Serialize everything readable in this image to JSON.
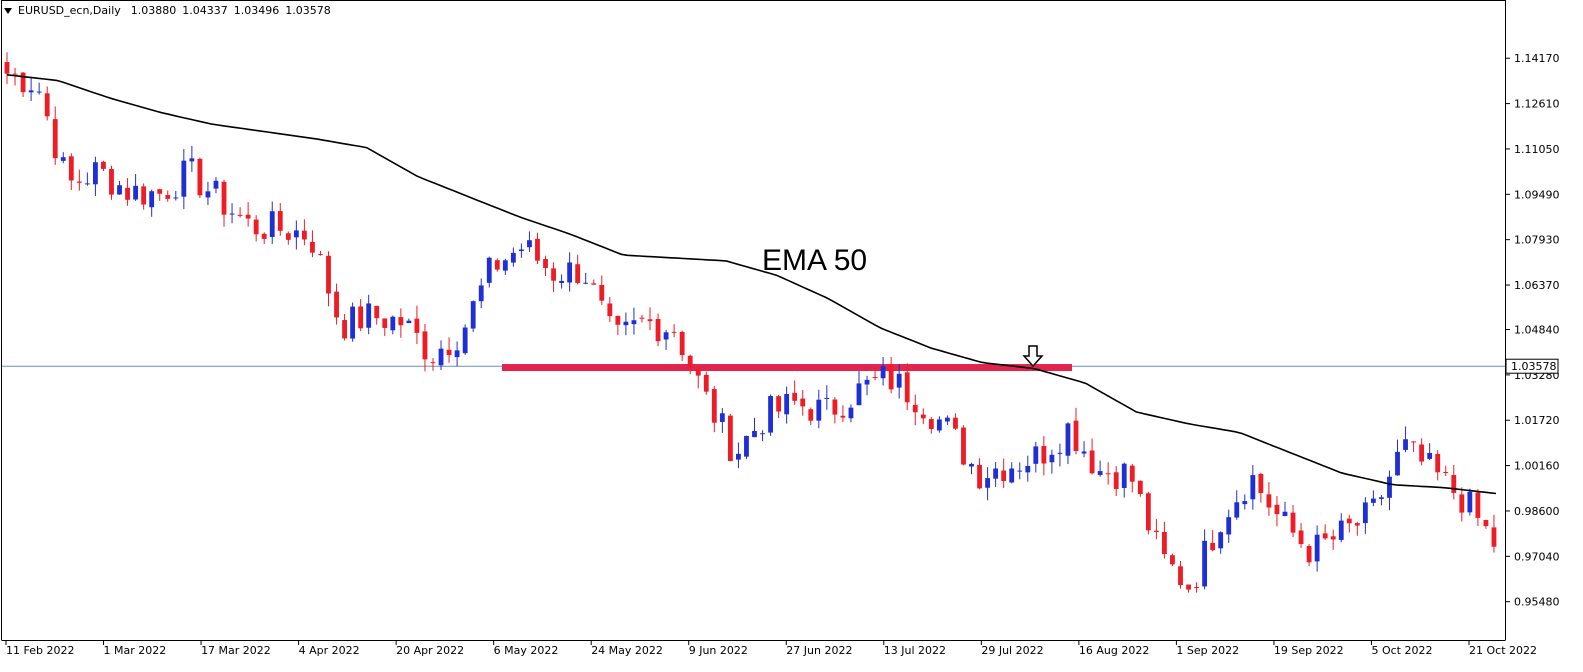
{
  "header": {
    "symbol": "EURUSD_ecn,Daily",
    "open": "1.03880",
    "high": "1.04337",
    "low": "1.03496",
    "close": "1.03578"
  },
  "annotations": {
    "ema_label": "EMA 50",
    "current_price": "1.03578"
  },
  "colors": {
    "bull": "#1f2fd6",
    "bear": "#ee1c25",
    "ema": "#000000",
    "support_zone": "#e0254f",
    "price_line": "#6b8fc0",
    "price_tag_bg": "#ffffff"
  },
  "chart_data": {
    "type": "candlestick",
    "title": "EURUSD_ecn,Daily",
    "ylim": [
      0.9485,
      1.149
    ],
    "y_ticks": [
      "1.14170",
      "1.12610",
      "1.11050",
      "1.09490",
      "1.07930",
      "1.06370",
      "1.04840",
      "1.03280",
      "1.01720",
      "1.00160",
      "0.98600",
      "0.97040",
      "0.95480"
    ],
    "x_ticks": [
      "11 Feb 2022",
      "1 Mar 2022",
      "17 Mar 2022",
      "4 Apr 2022",
      "20 Apr 2022",
      "6 May 2022",
      "24 May 2022",
      "9 Jun 2022",
      "27 Jun 2022",
      "13 Jul 2022",
      "29 Jul 2022",
      "16 Aug 2022",
      "1 Sep 2022",
      "19 Sep 2022",
      "5 Oct 2022",
      "21 Oct 2022"
    ],
    "support_level": 1.0355,
    "current_price": 1.03578,
    "arrow_marker": {
      "date": "11 Aug 2022",
      "direction": "down"
    },
    "series": [
      {
        "name": "EMA 50",
        "type": "line",
        "values": [
          1.136,
          1.134,
          1.128,
          1.123,
          1.119,
          1.1165,
          1.114,
          1.111,
          1.101,
          1.094,
          1.087,
          1.081,
          1.074,
          1.073,
          1.072,
          1.067,
          1.059,
          1.049,
          1.042,
          1.037,
          1.035,
          1.03,
          1.02,
          1.016,
          1.013,
          1.006,
          0.999,
          0.995,
          0.994,
          0.992
        ]
      },
      {
        "name": "EURUSD",
        "type": "candlestick",
        "values": [
          1.1365,
          1.133,
          1.098,
          1.103,
          1.096,
          1.095,
          1.1025,
          1.093,
          1.084,
          1.083,
          1.081,
          1.05,
          1.053,
          1.051,
          1.04,
          1.048,
          1.07,
          1.077,
          1.068,
          1.069,
          1.044,
          1.051,
          1.049,
          1.025,
          1.006,
          1.019,
          1.023,
          1.02,
          1.027,
          1.032,
          1.025,
          1.014,
          0.999,
          1.002,
          1.005,
          1.015,
          1.0,
          0.999,
          0.97,
          0.96,
          0.984,
          0.998,
          0.982,
          0.972,
          0.978,
          0.985,
          1.008,
          0.999,
          0.99,
          0.975
        ]
      }
    ]
  }
}
